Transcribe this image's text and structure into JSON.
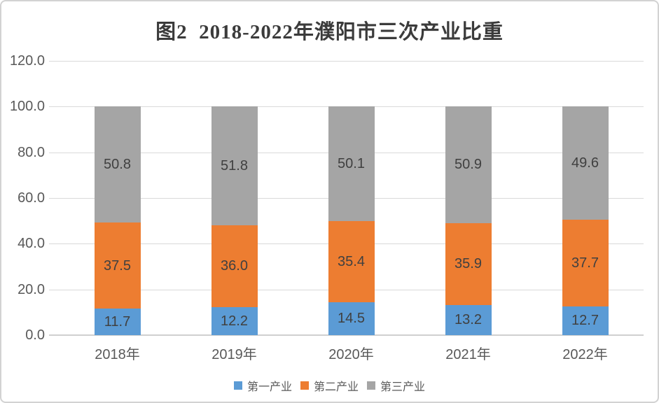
{
  "title": "图2  2018-2022年濮阳市三次产业比重",
  "chart_data": {
    "type": "bar",
    "stacked": true,
    "title": "图2  2018-2022年濮阳市三次产业比重",
    "categories": [
      "2018年",
      "2019年",
      "2020年",
      "2021年",
      "2022年"
    ],
    "series": [
      {
        "name": "第一产业",
        "color": "#5B9BD5",
        "values": [
          11.7,
          12.2,
          14.5,
          13.2,
          12.7
        ]
      },
      {
        "name": "第二产业",
        "color": "#ED7D31",
        "values": [
          37.5,
          36.0,
          35.4,
          35.9,
          37.7
        ]
      },
      {
        "name": "第三产业",
        "color": "#A5A5A5",
        "values": [
          50.8,
          51.8,
          50.1,
          50.9,
          49.6
        ]
      }
    ],
    "xlabel": "",
    "ylabel": "",
    "ylim": [
      0,
      120
    ],
    "ytick_step": 20,
    "ytick_labels": [
      "0.0",
      "20.0",
      "40.0",
      "60.0",
      "80.0",
      "100.0",
      "120.0"
    ],
    "value_labels": true,
    "value_label_decimals": 1,
    "grid": true,
    "gridline_color": "#D9D9D9",
    "legend_position": "bottom",
    "text_colors": {
      "ticks": "#595959",
      "data_labels": "#404040",
      "title": "#3B3B3B"
    }
  }
}
